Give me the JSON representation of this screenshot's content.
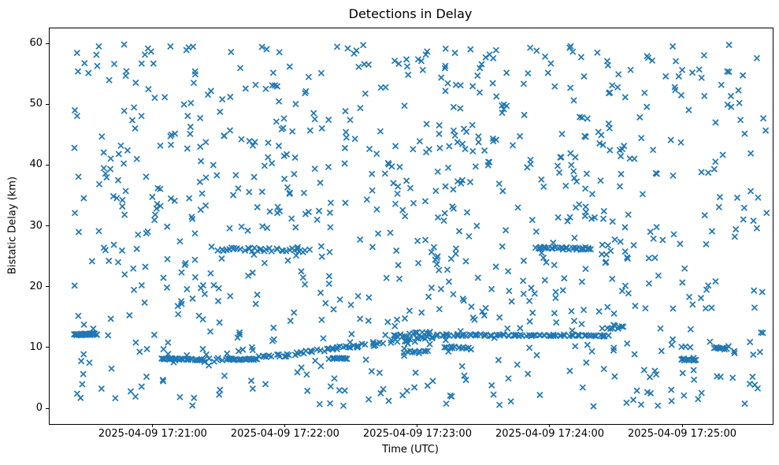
{
  "chart_data": {
    "type": "scatter",
    "title": "Detections in Delay",
    "xlabel": "Time (UTC)",
    "ylabel": "Bistatic Delay (km)",
    "grid": false,
    "legend": null,
    "marker": {
      "shape": "x",
      "color": "#1f77b4",
      "size": 7,
      "stroke_width": 1.7
    },
    "x_axis": {
      "base_time": "2025-04-09 17:20:00",
      "view_range_s": [
        12.9,
        340.7
      ],
      "ticks": [
        {
          "t": 60,
          "label": "2025-04-09 17:21:00"
        },
        {
          "t": 120,
          "label": "2025-04-09 17:22:00"
        },
        {
          "t": 180,
          "label": "2025-04-09 17:23:00"
        },
        {
          "t": 240,
          "label": "2025-04-09 17:24:00"
        },
        {
          "t": 300,
          "label": "2025-04-09 17:25:00"
        }
      ]
    },
    "y_axis": {
      "view_range": [
        -2.46,
        62.62
      ],
      "ticks": [
        0,
        10,
        20,
        30,
        40,
        50,
        60
      ]
    },
    "seed": 7,
    "noise": {
      "count": 850,
      "t_range_s": [
        24,
        338
      ],
      "y_range": [
        0.4,
        60
      ]
    },
    "tracks": [
      {
        "t0": 24,
        "t1": 34,
        "y0": 12.25,
        "y1": 12.35,
        "n": 38,
        "jt": 0.5,
        "jy": 0.12
      },
      {
        "t0": 64,
        "t1": 83,
        "y0": 8.3,
        "y1": 8.1,
        "n": 26,
        "jt": 0.6,
        "jy": 0.12
      },
      {
        "t0": 84,
        "t1": 92,
        "y0": 8.0,
        "y1": 8.1,
        "n": 6,
        "jt": 1.2,
        "jy": 0.3
      },
      {
        "t0": 93,
        "t1": 107,
        "y0": 8.2,
        "y1": 8.2,
        "n": 22,
        "jt": 0.5,
        "jy": 0.12
      },
      {
        "t0": 90,
        "t1": 130,
        "y0": 26.3,
        "y1": 26.1,
        "n": 34,
        "jt": 1.0,
        "jy": 0.3
      },
      {
        "t0": 108,
        "t1": 152,
        "y0": 8.4,
        "y1": 10.4,
        "n": 38,
        "jt": 1.2,
        "jy": 0.3
      },
      {
        "t0": 140,
        "t1": 148,
        "y0": 8.3,
        "y1": 8.3,
        "n": 13,
        "jt": 0.5,
        "jy": 0.12
      },
      {
        "t0": 152,
        "t1": 190,
        "y0": 10.4,
        "y1": 11.9,
        "n": 24,
        "jt": 1.5,
        "jy": 0.4
      },
      {
        "t0": 169,
        "t1": 185,
        "y0": 12.0,
        "y1": 12.2,
        "n": 20,
        "jt": 0.8,
        "jy": 0.5
      },
      {
        "t0": 174,
        "t1": 184,
        "y0": 9.4,
        "y1": 9.4,
        "n": 11,
        "jt": 0.6,
        "jy": 0.2
      },
      {
        "t0": 191,
        "t1": 266,
        "y0": 12.2,
        "y1": 12.1,
        "n": 80,
        "jt": 1.0,
        "jy": 0.15
      },
      {
        "t0": 192,
        "t1": 204,
        "y0": 10.2,
        "y1": 10.0,
        "n": 13,
        "jt": 0.6,
        "jy": 0.2
      },
      {
        "t0": 233,
        "t1": 258,
        "y0": 26.5,
        "y1": 26.4,
        "n": 28,
        "jt": 0.7,
        "jy": 0.2
      },
      {
        "t0": 266,
        "t1": 273,
        "y0": 13.2,
        "y1": 13.6,
        "n": 9,
        "jt": 0.5,
        "jy": 0.3
      },
      {
        "t0": 299,
        "t1": 306,
        "y0": 8.2,
        "y1": 8.0,
        "n": 11,
        "jt": 0.5,
        "jy": 0.15
      },
      {
        "t0": 314,
        "t1": 320,
        "y0": 10.1,
        "y1": 9.9,
        "n": 9,
        "jt": 0.4,
        "jy": 0.15
      }
    ]
  }
}
